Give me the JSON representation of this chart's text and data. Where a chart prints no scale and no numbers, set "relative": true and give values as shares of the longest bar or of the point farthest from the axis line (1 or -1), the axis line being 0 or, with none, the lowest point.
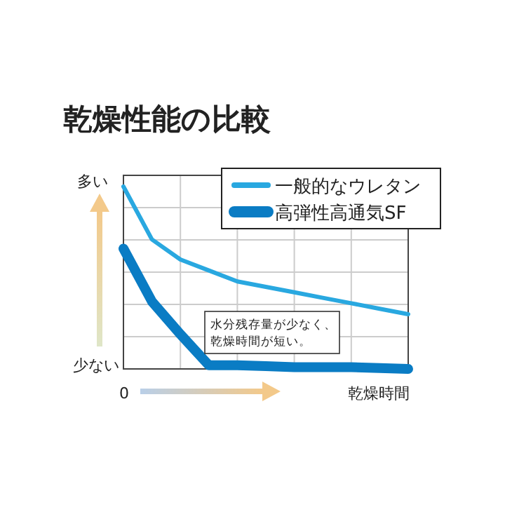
{
  "chart_data": {
    "type": "line",
    "title": "乾燥性能の比較",
    "xlabel": "乾燥時間",
    "relative": true,
    "grid": true,
    "legend": "top right",
    "marker": "none",
    "line_style": "solid",
    "categories": [
      null,
      null,
      null,
      null,
      null,
      null,
      null,
      null,
      null,
      null,
      null
    ],
    "series": [
      {
        "name": "一般的なウレタン",
        "color": "#29a8e0",
        "values": [
          1,
          0.71,
          0.6,
          0.54,
          0.48,
          0.45,
          0.42,
          0.39,
          0.36,
          0.33,
          0.3
        ]
      },
      {
        "name": "高弾性高通気SF",
        "color": "#0a7cc4",
        "values": [
          0.66,
          0.37,
          0.19,
          0.02,
          0.02,
          0.015,
          0.01,
          0.01,
          0.01,
          0.005,
          0
        ]
      }
    ],
    "annotations": [
      "多い",
      "少ない",
      "0",
      "水分残存量が少なく、",
      "乾燥時間が短い。"
    ]
  }
}
